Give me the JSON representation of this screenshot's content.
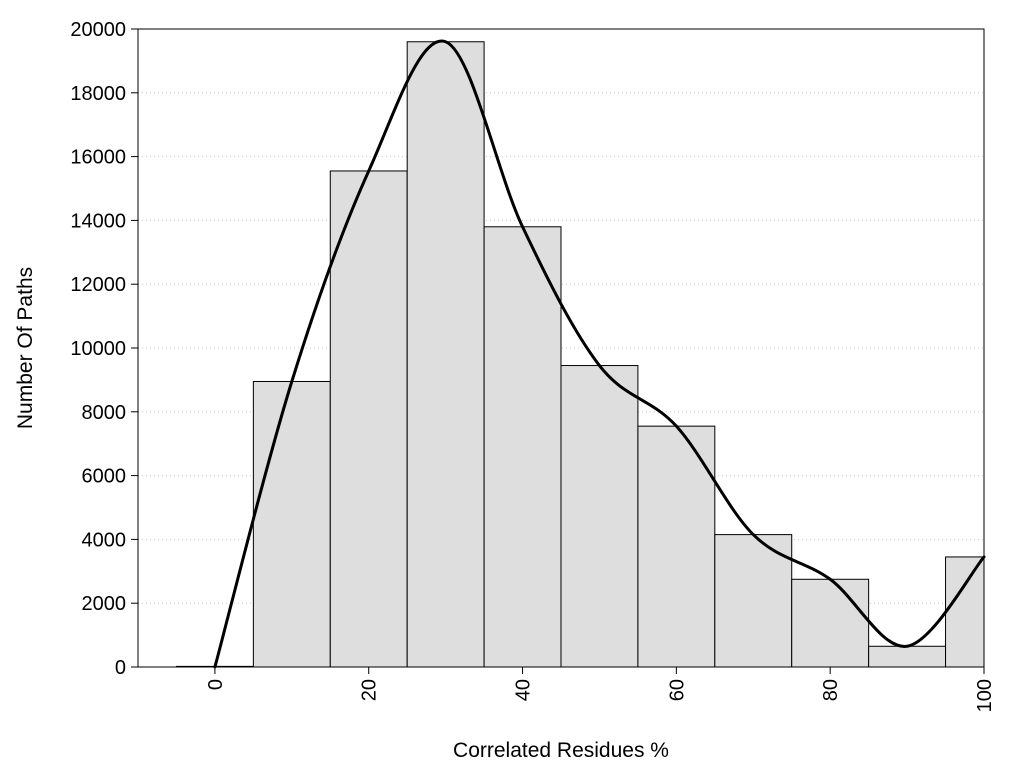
{
  "chart_data": {
    "type": "bar",
    "title": "",
    "xlabel": "Correlated Residues %",
    "ylabel": "Number Of Paths",
    "xlim": [
      -10,
      100
    ],
    "ylim": [
      0,
      20000
    ],
    "x_ticks": [
      0,
      20,
      40,
      60,
      80,
      100
    ],
    "y_ticks": [
      0,
      2000,
      4000,
      6000,
      8000,
      10000,
      12000,
      14000,
      16000,
      18000,
      20000
    ],
    "x_tick_rotation": -90,
    "grid": "horizontal dotted",
    "bin_width": 10,
    "x": [
      0,
      10,
      20,
      30,
      40,
      50,
      60,
      70,
      80,
      90,
      100
    ],
    "values": [
      20,
      8950,
      15550,
      19600,
      13800,
      9450,
      7550,
      4150,
      2750,
      650,
      3450
    ],
    "bar_color": "#dedede",
    "curve": {
      "type": "smooth line",
      "x": [
        0,
        10,
        20,
        30,
        40,
        50,
        60,
        70,
        80,
        90,
        100
      ],
      "y": [
        0,
        8950,
        15550,
        19600,
        13800,
        9450,
        7550,
        4150,
        2750,
        650,
        3450
      ],
      "color": "#000000"
    }
  }
}
